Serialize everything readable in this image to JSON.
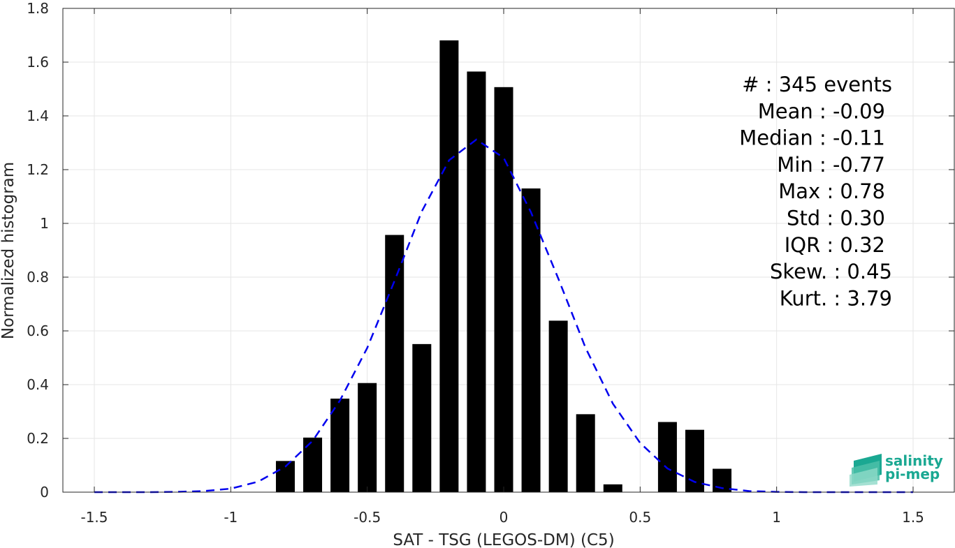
{
  "chart_data": {
    "type": "bar",
    "xlabel": "SAT - TSG (LEGOS-DM) (C5)",
    "ylabel": "Normalized histogram",
    "xlim": [
      -1.5,
      1.5
    ],
    "ylim": [
      0,
      1.8
    ],
    "xticks": [
      "-1.5",
      "-1",
      "-0.5",
      "0",
      "0.5",
      "1",
      "1.5"
    ],
    "yticks": [
      "0",
      "0.2",
      "0.4",
      "0.6",
      "0.8",
      "1",
      "1.2",
      "1.4",
      "1.6",
      "1.8"
    ],
    "grid": true,
    "bar_color": "#000000",
    "bins": [
      {
        "x": -0.8,
        "value": 0.116
      },
      {
        "x": -0.7,
        "value": 0.203
      },
      {
        "x": -0.6,
        "value": 0.348
      },
      {
        "x": -0.5,
        "value": 0.406
      },
      {
        "x": -0.4,
        "value": 0.957
      },
      {
        "x": -0.3,
        "value": 0.551
      },
      {
        "x": -0.2,
        "value": 1.681
      },
      {
        "x": -0.1,
        "value": 1.565
      },
      {
        "x": 0.0,
        "value": 1.507
      },
      {
        "x": 0.1,
        "value": 1.13
      },
      {
        "x": 0.2,
        "value": 0.638
      },
      {
        "x": 0.3,
        "value": 0.29
      },
      {
        "x": 0.4,
        "value": 0.029
      },
      {
        "x": 0.5,
        "value": 0.0
      },
      {
        "x": 0.6,
        "value": 0.261
      },
      {
        "x": 0.7,
        "value": 0.232
      },
      {
        "x": 0.8,
        "value": 0.087
      }
    ],
    "fit_curve": {
      "style": "dashed",
      "color": "#0000ee",
      "x": [
        -1.5,
        -1.4,
        -1.3,
        -1.2,
        -1.1,
        -1.0,
        -0.9,
        -0.8,
        -0.7,
        -0.6,
        -0.5,
        -0.4,
        -0.3,
        -0.2,
        -0.1,
        0.0,
        0.1,
        0.2,
        0.3,
        0.4,
        0.5,
        0.6,
        0.7,
        0.8,
        0.9,
        1.0,
        1.1,
        1.2,
        1.3,
        1.4,
        1.5
      ],
      "y": [
        0.0,
        0.0,
        0.0,
        0.001,
        0.004,
        0.013,
        0.039,
        0.095,
        0.191,
        0.341,
        0.537,
        0.786,
        1.045,
        1.235,
        1.312,
        1.244,
        1.041,
        0.795,
        0.537,
        0.329,
        0.183,
        0.088,
        0.038,
        0.015,
        0.004,
        0.001,
        0.0,
        0.0,
        0.0,
        0.0,
        0.0
      ]
    },
    "stats": [
      "#  : 345 events",
      "Mean : -0.09",
      "Median : -0.11",
      "Min : -0.77",
      "Max : 0.78",
      "Std : 0.30",
      "IQR : 0.32",
      "Skew. : 0.45",
      "Kurt. : 3.79"
    ]
  },
  "logo": {
    "line1": "salinity",
    "line2": "pi-mep",
    "color": "#1aa892"
  }
}
